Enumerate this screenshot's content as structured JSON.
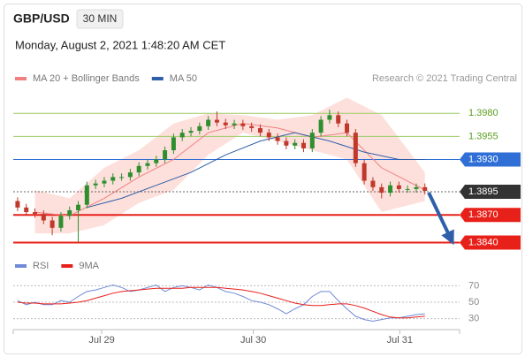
{
  "chart_data": [
    {
      "type": "candlestick",
      "title": "GBP/USD",
      "subtitle": "30 MIN",
      "timestamp": "Monday, August 2, 2021 1:48:20 AM CET",
      "source": "Research © 2021 Trading Central",
      "up_color": "#2f8f2f",
      "down_color": "#c0392b",
      "x": [
        0,
        1,
        2,
        3,
        4,
        5,
        6,
        7,
        8,
        9,
        10,
        11,
        12,
        13,
        14,
        15,
        16,
        17,
        18,
        19,
        20,
        21,
        22,
        23,
        24,
        25,
        26,
        27,
        28,
        29,
        30,
        31,
        32,
        33,
        34,
        35,
        36,
        37,
        38,
        39,
        40,
        41,
        42,
        43,
        44,
        45,
        46,
        47
      ],
      "open": [
        1.3885,
        1.3878,
        1.3873,
        1.3871,
        1.3864,
        1.3856,
        1.3869,
        1.3875,
        1.3881,
        1.3902,
        1.3904,
        1.3907,
        1.3911,
        1.3911,
        1.3916,
        1.3923,
        1.3926,
        1.393,
        1.394,
        1.3954,
        1.3959,
        1.3961,
        1.3966,
        1.3973,
        1.397,
        1.3967,
        1.3969,
        1.3966,
        1.3964,
        1.3959,
        1.3954,
        1.395,
        1.3945,
        1.3948,
        1.3942,
        1.3959,
        1.3973,
        1.3978,
        1.3969,
        1.3959,
        1.3926,
        1.3907,
        1.39,
        1.3894,
        1.3902,
        1.3898,
        1.3898,
        1.39
      ],
      "high": [
        1.3889,
        1.3882,
        1.3877,
        1.3875,
        1.3868,
        1.3873,
        1.3879,
        1.3885,
        1.3906,
        1.3908,
        1.3911,
        1.3915,
        1.3915,
        1.392,
        1.3927,
        1.393,
        1.3934,
        1.3944,
        1.3958,
        1.3963,
        1.3965,
        1.397,
        1.3977,
        1.3982,
        1.3974,
        1.3973,
        1.3973,
        1.397,
        1.3968,
        1.3963,
        1.3958,
        1.3954,
        1.3952,
        1.3952,
        1.3963,
        1.3977,
        1.3984,
        1.3982,
        1.3973,
        1.3963,
        1.393,
        1.3911,
        1.3904,
        1.3906,
        1.3906,
        1.3902,
        1.3904,
        1.3904
      ],
      "low": [
        1.3874,
        1.3869,
        1.3867,
        1.386,
        1.3848,
        1.3852,
        1.3865,
        1.3841,
        1.3877,
        1.3898,
        1.39,
        1.3903,
        1.3907,
        1.3907,
        1.3912,
        1.3919,
        1.3922,
        1.3926,
        1.3936,
        1.395,
        1.3955,
        1.3957,
        1.3962,
        1.3966,
        1.3963,
        1.3963,
        1.3962,
        1.396,
        1.3955,
        1.395,
        1.3946,
        1.3941,
        1.3941,
        1.3938,
        1.3938,
        1.3955,
        1.3969,
        1.3965,
        1.3955,
        1.3922,
        1.3903,
        1.3896,
        1.3888,
        1.389,
        1.3894,
        1.3894,
        1.3894,
        1.3892
      ],
      "close": [
        1.3878,
        1.3873,
        1.3871,
        1.3864,
        1.3856,
        1.3869,
        1.3875,
        1.3881,
        1.3902,
        1.3904,
        1.3907,
        1.3911,
        1.3911,
        1.3916,
        1.3923,
        1.3926,
        1.393,
        1.394,
        1.3954,
        1.3959,
        1.3961,
        1.3966,
        1.3973,
        1.397,
        1.3967,
        1.3969,
        1.3966,
        1.3964,
        1.3959,
        1.3954,
        1.395,
        1.3945,
        1.3948,
        1.3942,
        1.3959,
        1.3973,
        1.3978,
        1.3969,
        1.3959,
        1.3926,
        1.3907,
        1.39,
        1.3894,
        1.3902,
        1.3898,
        1.3898,
        1.39,
        1.3896
      ],
      "series": [
        {
          "name": "MA 20 + Bollinger Bands",
          "color": "#f08080",
          "band_color": "#fde0dc",
          "x": [
            2,
            6,
            10,
            14,
            18,
            22,
            26,
            30,
            34,
            38,
            42,
            47
          ],
          "values": [
            1.3873,
            1.3869,
            1.3888,
            1.3911,
            1.393,
            1.3959,
            1.3969,
            1.3964,
            1.3954,
            1.3959,
            1.3921,
            1.3897
          ],
          "upper": [
            1.3897,
            1.3888,
            1.3921,
            1.394,
            1.3969,
            1.398,
            1.3978,
            1.3973,
            1.3978,
            1.3997,
            1.3978,
            1.3916
          ],
          "lower": [
            1.385,
            1.385,
            1.3859,
            1.3883,
            1.3897,
            1.3935,
            1.3959,
            1.395,
            1.394,
            1.393,
            1.3873,
            1.3885
          ]
        },
        {
          "name": "MA 50",
          "color": "#2e5fa8",
          "x": [
            8,
            12,
            16,
            20,
            24,
            28,
            32,
            36,
            40,
            44,
            47
          ],
          "values": [
            1.3878,
            1.3888,
            1.3902,
            1.3916,
            1.3935,
            1.395,
            1.3959,
            1.395,
            1.3938,
            1.393,
            1.393
          ]
        }
      ],
      "levels": [
        {
          "value": 1.398,
          "label": "1.3980",
          "color": "#9ccc65",
          "text_color": "#5a9e1e",
          "tag": false,
          "line_style": "solid"
        },
        {
          "value": 1.3955,
          "label": "1.3955",
          "color": "#9ccc65",
          "text_color": "#5a9e1e",
          "tag": false,
          "line_style": "solid"
        },
        {
          "value": 1.393,
          "label": "1.3930",
          "color": "#2f6fd6",
          "text_color": "#ffffff",
          "tag": true,
          "line_style": "solid"
        },
        {
          "value": 1.3895,
          "label": "1.3895",
          "color": "#333333",
          "text_color": "#ffffff",
          "tag": true,
          "line_style": "dotted"
        },
        {
          "value": 1.387,
          "label": "1.3870",
          "color": "#e8201a",
          "text_color": "#ffffff",
          "tag": true,
          "line_style": "solid"
        },
        {
          "value": 1.384,
          "label": "1.3840",
          "color": "#e8201a",
          "text_color": "#ffffff",
          "tag": true,
          "line_style": "solid"
        }
      ],
      "xlim": [
        -0.5,
        51
      ],
      "ylim": [
        1.383,
        1.4007
      ]
    },
    {
      "type": "line",
      "x": [
        0,
        1,
        2,
        3,
        4,
        5,
        6,
        7,
        8,
        9,
        10,
        11,
        12,
        13,
        14,
        15,
        16,
        17,
        18,
        19,
        20,
        21,
        22,
        23,
        24,
        25,
        26,
        27,
        28,
        29,
        30,
        31,
        32,
        33,
        34,
        35,
        36,
        37,
        38,
        39,
        40,
        41,
        42,
        43,
        44,
        45,
        46,
        47
      ],
      "series": [
        {
          "name": "RSI",
          "color": "#6f8ad8",
          "values": [
            52,
            47,
            50,
            47,
            47,
            52,
            50,
            57,
            63,
            65,
            68,
            71,
            68,
            63,
            65,
            68,
            71,
            63,
            68,
            70,
            68,
            65,
            71,
            68,
            63,
            61,
            57,
            52,
            50,
            47,
            42,
            36,
            42,
            47,
            57,
            63,
            63,
            52,
            42,
            33,
            29,
            27,
            29,
            31,
            31,
            33,
            35,
            36
          ]
        },
        {
          "name": "9MA",
          "color": "#e8201a",
          "values": [
            50,
            49,
            49,
            48,
            48,
            48,
            49,
            50,
            52,
            55,
            58,
            61,
            63,
            64,
            65,
            66,
            67,
            67,
            67,
            67,
            68,
            68,
            68,
            68,
            67,
            66,
            65,
            63,
            61,
            58,
            55,
            52,
            49,
            47,
            46,
            46,
            47,
            48,
            48,
            46,
            43,
            39,
            35,
            32,
            31,
            31,
            32,
            33
          ]
        }
      ],
      "xlim": [
        -0.5,
        51
      ],
      "ylim": [
        20,
        79
      ],
      "yticks": [
        30,
        50,
        70
      ],
      "xticks": [
        {
          "value": 9.7,
          "label": "Jul 29"
        },
        {
          "value": 27.2,
          "label": "Jul 30"
        },
        {
          "value": 44.1,
          "label": "Jul 31"
        }
      ]
    }
  ]
}
